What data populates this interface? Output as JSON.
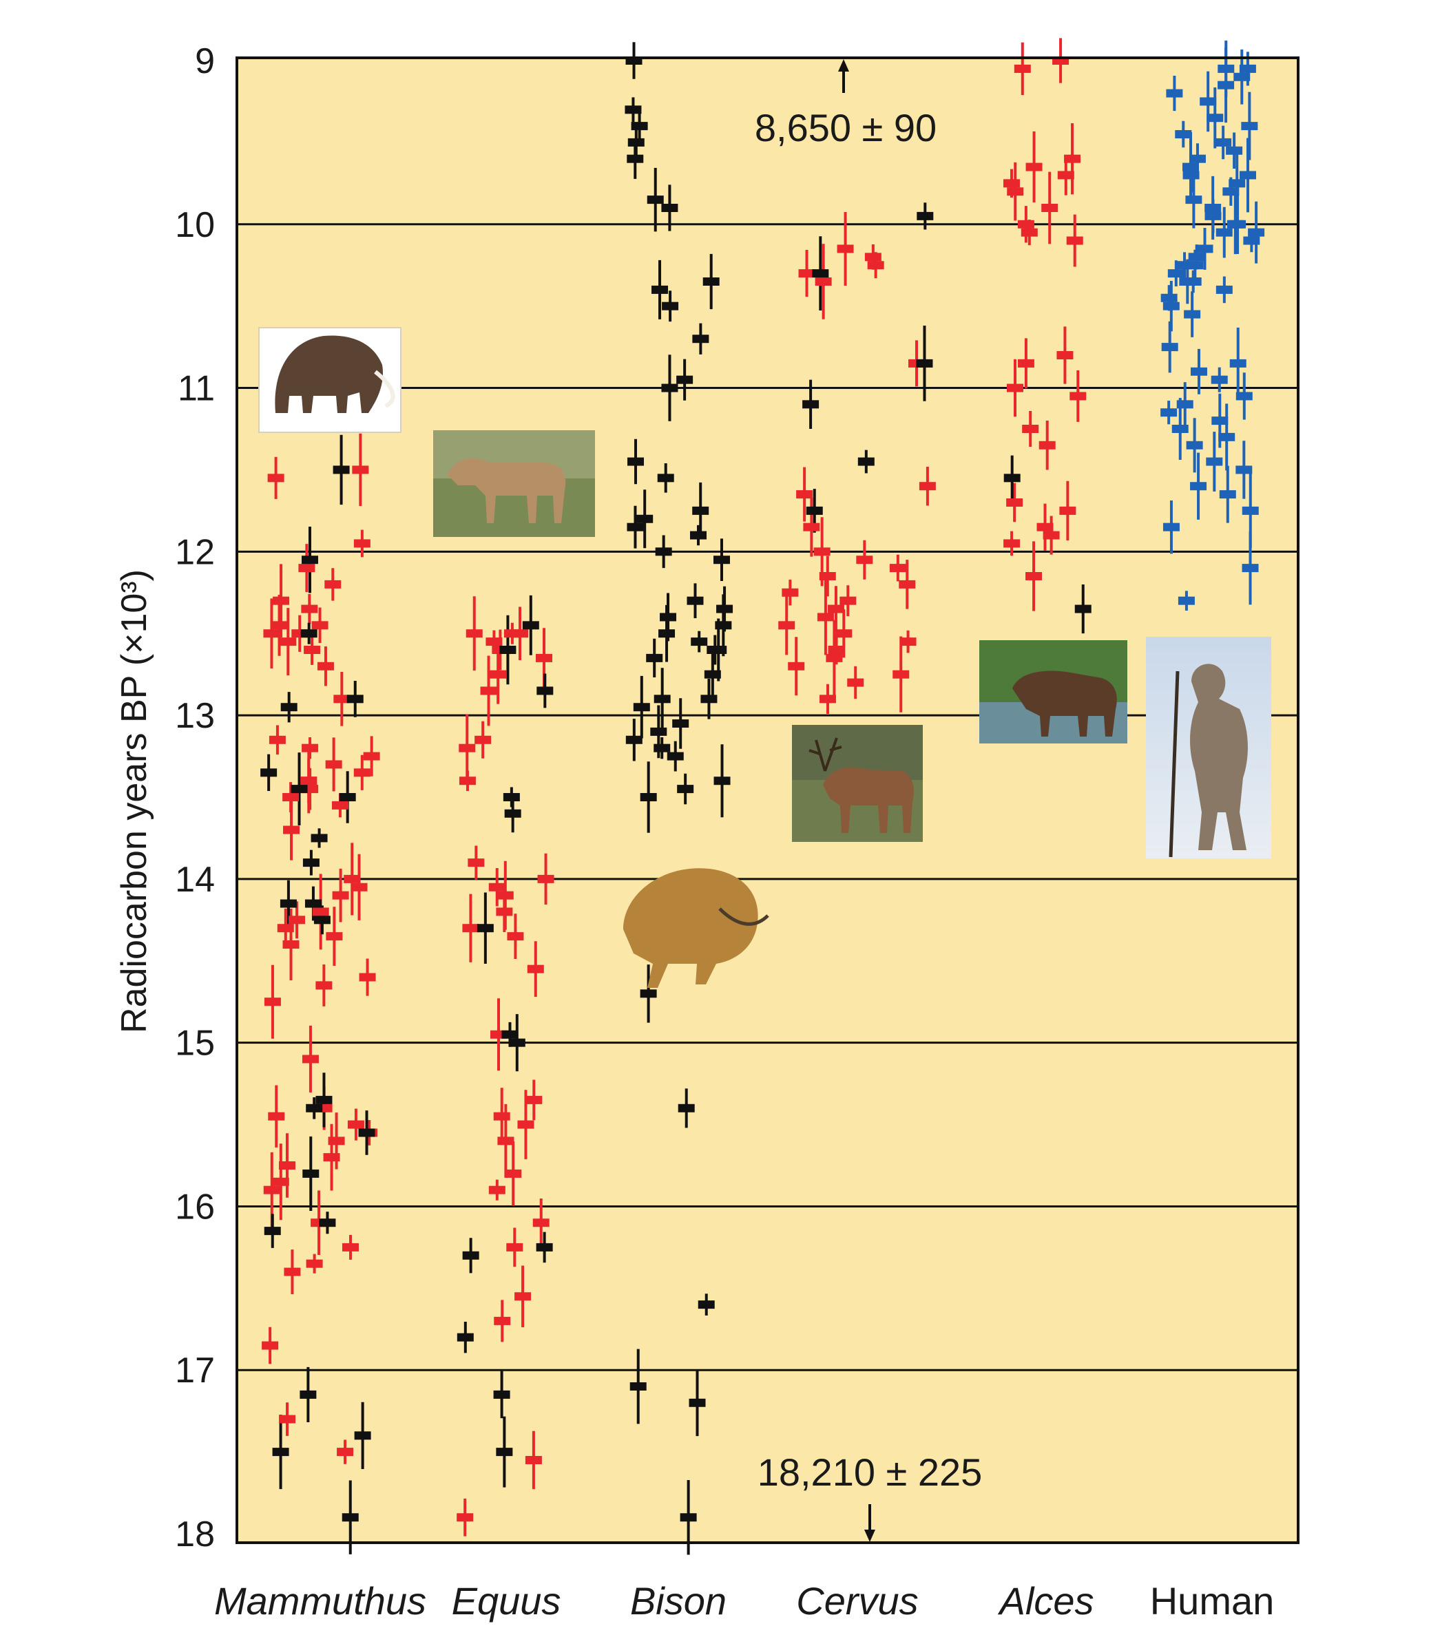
{
  "chart_data": {
    "type": "scatter",
    "ylabel": "Radiocarbon years BP (×10³)",
    "ylim": [
      9,
      18
    ],
    "y_inverted": true,
    "yticks": [
      "9",
      "10",
      "11",
      "12",
      "13",
      "14",
      "15",
      "16",
      "17",
      "18"
    ],
    "categories": [
      "Mammuthus",
      "Equus",
      "Bison",
      "Cervus",
      "Alces",
      "Human"
    ],
    "italic_categories": [
      "Mammuthus",
      "Equus",
      "Bison",
      "Cervus",
      "Alces"
    ],
    "grid": "horizontal",
    "annotations": [
      {
        "text": "8,650 ± 90",
        "category": "Cervus",
        "y": 9,
        "arrow": "up"
      },
      {
        "text": "18,210 ± 225",
        "category": "Cervus",
        "y": 18,
        "arrow": "down"
      }
    ],
    "series": [
      {
        "color": "#e8262b",
        "points": {
          "Mammuthus": [
            11.5,
            11.55,
            11.95,
            12.1,
            12.2,
            12.3,
            12.35,
            12.45,
            12.45,
            12.5,
            12.5,
            12.55,
            12.6,
            12.7,
            12.9,
            13.15,
            13.2,
            13.25,
            13.3,
            13.35,
            13.4,
            13.4,
            13.45,
            13.5,
            13.55,
            13.7,
            14.0,
            14.05,
            14.1,
            14.2,
            14.25,
            14.3,
            14.35,
            14.4,
            14.6,
            14.65,
            14.75,
            15.1,
            15.4,
            15.45,
            15.5,
            15.55,
            15.6,
            15.7,
            15.75,
            15.85,
            15.9,
            16.1,
            16.25,
            16.35,
            16.4,
            16.85,
            17.3,
            17.5
          ],
          "Equus": [
            12.5,
            12.5,
            12.55,
            12.6,
            12.65,
            12.75,
            12.85,
            12.5,
            13.15,
            13.2,
            13.4,
            13.9,
            14.0,
            14.05,
            14.1,
            14.2,
            14.3,
            14.35,
            14.55,
            14.95,
            15.35,
            15.45,
            15.5,
            15.6,
            15.8,
            15.9,
            16.1,
            16.25,
            16.55,
            16.7,
            17.55,
            17.9
          ],
          "Cervus": [
            10.15,
            10.2,
            10.25,
            10.3,
            10.35,
            10.85,
            11.6,
            11.65,
            11.85,
            12.0,
            12.05,
            12.1,
            12.15,
            12.2,
            12.25,
            12.3,
            12.35,
            12.4,
            12.45,
            12.5,
            12.55,
            12.6,
            12.65,
            12.7,
            12.75,
            12.8,
            12.9
          ],
          "Alces": [
            9.0,
            9.05,
            9.6,
            9.65,
            9.7,
            9.75,
            9.8,
            9.9,
            10.0,
            10.05,
            10.1,
            10.8,
            10.85,
            11.0,
            11.05,
            11.25,
            11.35,
            11.7,
            11.75,
            11.85,
            11.9,
            11.95,
            12.15
          ]
        }
      },
      {
        "color": "#111111",
        "points": {
          "Mammuthus": [
            11.5,
            12.05,
            12.5,
            12.9,
            12.95,
            13.35,
            13.45,
            13.5,
            13.75,
            13.9,
            14.15,
            14.15,
            14.25,
            15.35,
            15.4,
            15.55,
            15.8,
            16.1,
            16.15,
            17.15,
            17.4,
            17.5,
            17.9
          ],
          "Equus": [
            12.45,
            12.6,
            12.85,
            13.5,
            13.6,
            14.3,
            14.95,
            15.0,
            16.25,
            16.3,
            16.8,
            17.15,
            17.5
          ],
          "Bison": [
            9.0,
            9.3,
            9.4,
            9.5,
            9.6,
            9.85,
            9.9,
            10.35,
            10.4,
            10.5,
            10.7,
            10.95,
            11.0,
            11.45,
            11.55,
            11.75,
            11.8,
            11.85,
            11.9,
            12.0,
            12.05,
            12.3,
            12.35,
            12.4,
            12.45,
            12.5,
            12.55,
            12.6,
            12.6,
            12.65,
            12.75,
            12.9,
            12.9,
            12.95,
            13.05,
            13.1,
            13.15,
            13.2,
            13.25,
            13.4,
            13.45,
            13.5,
            14.7,
            15.4,
            16.6,
            17.1,
            17.2,
            17.9
          ],
          "Cervus": [
            9.95,
            10.3,
            10.85,
            11.1,
            11.45,
            11.75
          ],
          "Alces": [
            11.55,
            12.35
          ]
        }
      },
      {
        "color": "#1f63b8",
        "points": {
          "Human": [
            9.05,
            9.05,
            9.1,
            9.15,
            9.2,
            9.25,
            9.35,
            9.4,
            9.45,
            9.5,
            9.55,
            9.6,
            9.65,
            9.7,
            9.7,
            9.75,
            9.8,
            9.85,
            9.9,
            9.95,
            10.0,
            10.0,
            10.05,
            10.05,
            10.1,
            10.15,
            10.2,
            10.25,
            10.25,
            10.3,
            10.35,
            10.35,
            10.4,
            10.45,
            10.5,
            10.55,
            10.75,
            10.85,
            10.9,
            10.95,
            11.05,
            11.1,
            11.15,
            11.2,
            11.25,
            11.3,
            11.35,
            11.45,
            11.5,
            11.6,
            11.65,
            11.75,
            11.85,
            12.1,
            12.3
          ]
        }
      }
    ]
  }
}
